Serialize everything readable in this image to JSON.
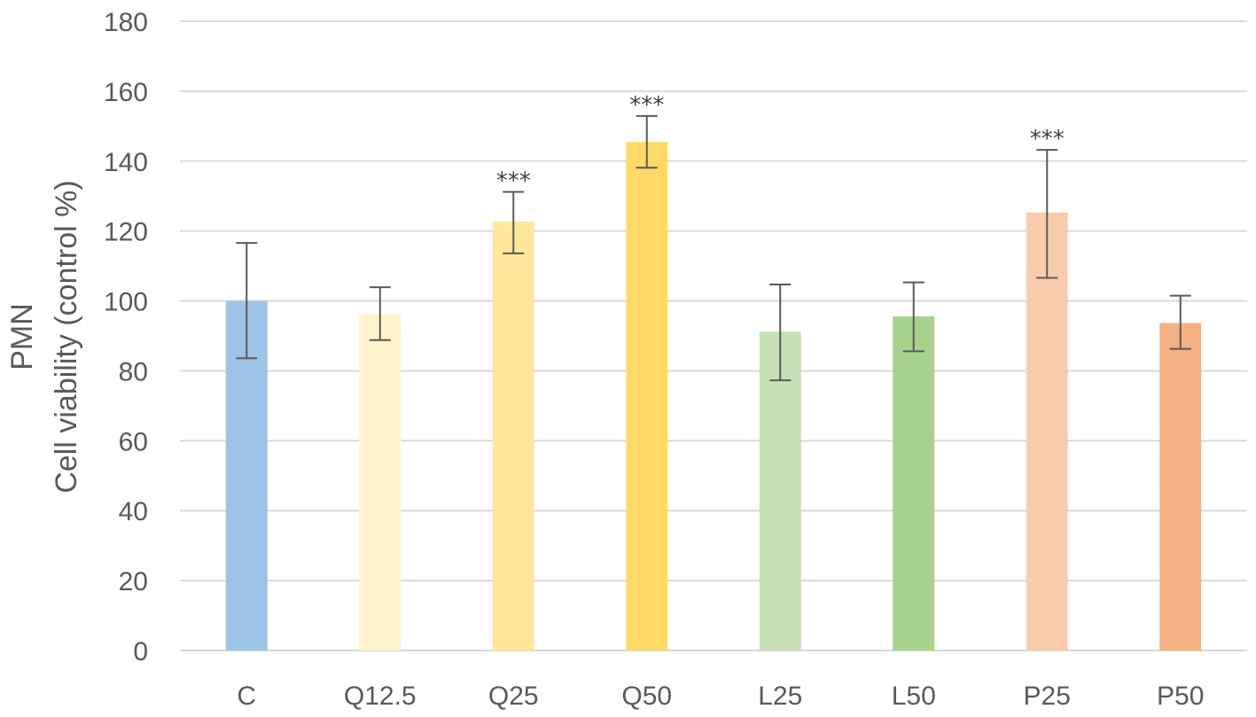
{
  "chart_data": {
    "type": "bar",
    "title": "",
    "xlabel": "",
    "ylabel_lines": [
      "PMN",
      "Cell viability (control %)"
    ],
    "ylim": [
      0,
      180
    ],
    "yticks": [
      0,
      20,
      40,
      60,
      80,
      100,
      120,
      140,
      160,
      180
    ],
    "grid": true,
    "legend": "none",
    "categories": [
      "C",
      "Q12.5",
      "Q25",
      "Q50",
      "L25",
      "L50",
      "P25",
      "P50"
    ],
    "values": [
      100,
      96.2,
      122.7,
      145.5,
      91.2,
      95.6,
      125.3,
      93.7
    ],
    "error_low": [
      83.6,
      88.8,
      113.6,
      138.1,
      77.3,
      85.6,
      106.6,
      86.3
    ],
    "error_high": [
      116.6,
      103.9,
      131.2,
      152.9,
      104.7,
      105.3,
      143.2,
      101.5
    ],
    "significance": [
      "",
      "",
      "***",
      "***",
      "",
      "",
      "***",
      ""
    ],
    "colors": [
      "#9dc3e6",
      "#fff2cc",
      "#ffe699",
      "#ffd966",
      "#c5e0b4",
      "#a9d18e",
      "#f8cbad",
      "#f4b183"
    ]
  }
}
